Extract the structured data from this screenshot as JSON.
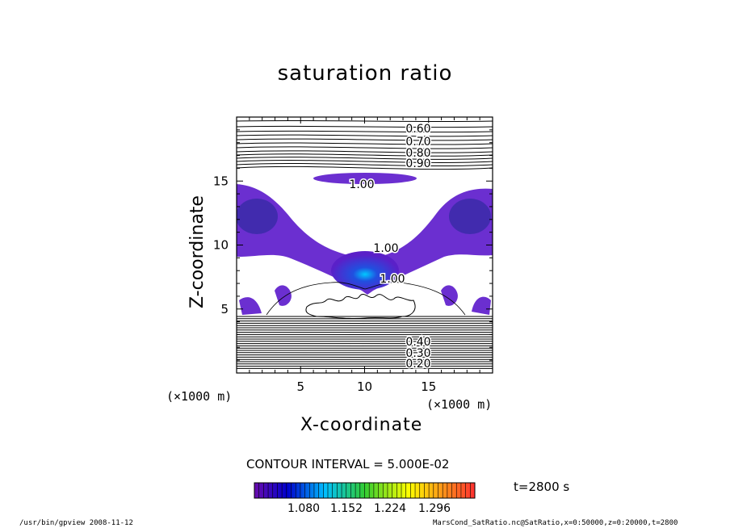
{
  "chart_data": {
    "type": "heatmap",
    "title": "saturation ratio",
    "xlabel": "X-coordinate",
    "ylabel": "Z-coordinate",
    "x_unit": "(×1000 m)",
    "y_unit": "(×1000 m)",
    "xlim": [
      0,
      20
    ],
    "ylim": [
      0,
      20
    ],
    "x_ticks": [
      "5",
      "10",
      "15"
    ],
    "y_ticks": [
      "5",
      "10",
      "15"
    ],
    "contour_labels": [
      "0.60",
      "0.70",
      "0.80",
      "0.90",
      "1.00",
      "1.00",
      "1.00",
      "0.20",
      "0.30",
      "0.40"
    ],
    "contour_interval": "CONTOUR INTERVAL = 5.000E-02",
    "colorbar_ticks": [
      "1.080",
      "1.152",
      "1.224",
      "1.296"
    ],
    "colorbar_colors": [
      "#4b0082",
      "#0000cd",
      "#00bfff",
      "#32cd32",
      "#ffff00",
      "#ff4500"
    ],
    "time": "t=2800 s"
  },
  "footer": {
    "left": "/usr/bin/gpview   2008-11-12",
    "right": "MarsCond_SatRatio.nc@SatRatio,x=0:50000,z=0:20000,t=2800"
  }
}
